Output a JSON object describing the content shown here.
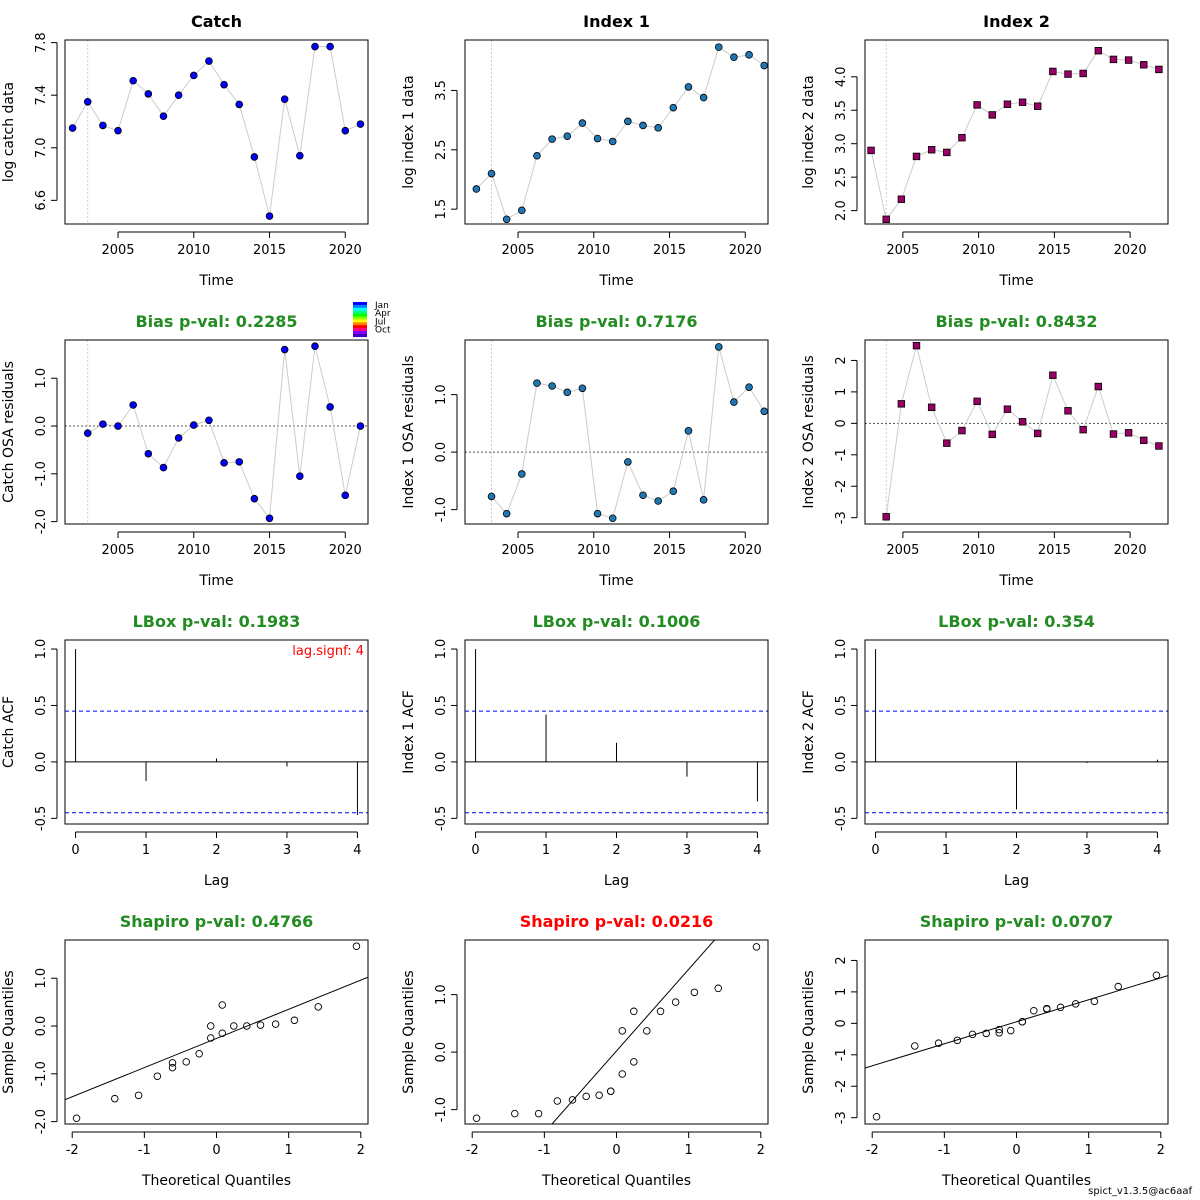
{
  "footer": "spict_v1.3.5@ac6aaf",
  "season_legend": [
    "Jan",
    "Apr",
    "Jul",
    "Oct"
  ],
  "colors": {
    "ok": "#228B22",
    "bad": "#FF0000",
    "catch_pt": "#0000FF",
    "index1_pt": "#1F78B4",
    "index2_pt": "#990066",
    "ci_line": "#0000FF"
  },
  "chart_data": [
    {
      "type": "scatter",
      "title": "Catch",
      "xlabel": "Time",
      "ylabel": "log catch data",
      "xlim": [
        2001.5,
        2021.5
      ],
      "ylim": [
        6.42,
        7.82
      ],
      "xticks": [
        2005,
        2010,
        2015,
        2020
      ],
      "yticks": [
        6.6,
        7.0,
        7.4,
        7.8
      ],
      "ytick_labels": [
        "6.6",
        "7.0",
        "7.4",
        "7.8"
      ],
      "vline": 2003,
      "marker": "circle",
      "color": "#0000FF",
      "x": [
        2002,
        2003,
        2004,
        2005,
        2006,
        2007,
        2008,
        2009,
        2010,
        2011,
        2012,
        2013,
        2014,
        2015,
        2016,
        2017,
        2018,
        2019,
        2020,
        2021
      ],
      "y": [
        7.15,
        7.35,
        7.17,
        7.13,
        7.51,
        7.41,
        7.24,
        7.4,
        7.55,
        7.66,
        7.48,
        7.33,
        6.93,
        6.48,
        7.37,
        6.94,
        7.77,
        7.77,
        7.13,
        7.18
      ]
    },
    {
      "type": "scatter",
      "title": "Index 1",
      "xlabel": "Time",
      "ylabel": "log index 1 data",
      "xlim": [
        2001.5,
        2021.5
      ],
      "ylim": [
        1.25,
        4.35
      ],
      "xticks": [
        2005,
        2010,
        2015,
        2020
      ],
      "yticks": [
        1.5,
        2.5,
        3.5
      ],
      "ytick_labels": [
        "1.5",
        "2.5",
        "3.5"
      ],
      "vline": 2003.25,
      "marker": "circle",
      "color": "#1F78B4",
      "x": [
        2002.25,
        2003.25,
        2004.25,
        2005.25,
        2006.25,
        2007.25,
        2008.25,
        2009.25,
        2010.25,
        2011.25,
        2012.25,
        2013.25,
        2014.25,
        2015.25,
        2016.25,
        2017.25,
        2018.25,
        2019.25,
        2020.25,
        2021.25
      ],
      "y": [
        1.84,
        2.1,
        1.33,
        1.48,
        2.4,
        2.68,
        2.73,
        2.95,
        2.69,
        2.64,
        2.98,
        2.91,
        2.87,
        3.21,
        3.56,
        3.38,
        4.23,
        4.06,
        4.1,
        3.92
      ]
    },
    {
      "type": "scatter",
      "title": "Index 2",
      "xlabel": "Time",
      "ylabel": "log index 2 data",
      "xlim": [
        2002.5,
        2022.5
      ],
      "ylim": [
        1.8,
        4.55
      ],
      "xticks": [
        2005,
        2010,
        2015,
        2020
      ],
      "yticks": [
        2.0,
        2.5,
        3.0,
        3.5,
        4.0
      ],
      "ytick_labels": [
        "2.0",
        "2.5",
        "3.0",
        "3.5",
        "4.0"
      ],
      "vline": 2003.9,
      "marker": "square",
      "color": "#990066",
      "x": [
        2002.9,
        2003.9,
        2004.9,
        2005.9,
        2006.9,
        2007.9,
        2008.9,
        2009.9,
        2010.9,
        2011.9,
        2012.9,
        2013.9,
        2014.9,
        2015.9,
        2016.9,
        2017.9,
        2018.9,
        2019.9,
        2020.9,
        2021.9
      ],
      "y": [
        2.9,
        1.87,
        2.17,
        2.81,
        2.91,
        2.87,
        3.09,
        3.58,
        3.43,
        3.59,
        3.62,
        3.56,
        4.08,
        4.04,
        4.05,
        4.39,
        4.26,
        4.25,
        4.18,
        4.11
      ]
    },
    {
      "type": "scatter",
      "title": "Bias p-val: 0.2285",
      "title_status": "ok",
      "xlabel": "Time",
      "ylabel": "Catch OSA residuals",
      "xlim": [
        2001.5,
        2021.5
      ],
      "ylim": [
        -2.05,
        1.8
      ],
      "xticks": [
        2005,
        2010,
        2015,
        2020
      ],
      "yticks": [
        -2.0,
        -1.0,
        0.0,
        1.0
      ],
      "ytick_labels": [
        "-2.0",
        "-1.0",
        "0.0",
        "1.0"
      ],
      "vline": 2003,
      "hline": 0,
      "marker": "circle",
      "color": "#0000FF",
      "season_legend": true,
      "x": [
        2003,
        2004,
        2005,
        2006,
        2007,
        2008,
        2009,
        2010,
        2011,
        2012,
        2013,
        2014,
        2015,
        2016,
        2017,
        2018,
        2019,
        2020,
        2021
      ],
      "y": [
        -0.15,
        0.04,
        0.0,
        0.44,
        -0.58,
        -0.87,
        -0.25,
        0.02,
        0.12,
        -0.77,
        -0.75,
        -1.52,
        -1.93,
        1.6,
        -1.05,
        1.67,
        0.4,
        -1.45,
        0.0
      ]
    },
    {
      "type": "scatter",
      "title": "Bias p-val: 0.7176",
      "title_status": "ok",
      "xlabel": "Time",
      "ylabel": "Index 1 OSA residuals",
      "xlim": [
        2001.5,
        2021.5
      ],
      "ylim": [
        -1.25,
        1.95
      ],
      "xticks": [
        2005,
        2010,
        2015,
        2020
      ],
      "yticks": [
        -1.0,
        0.0,
        1.0
      ],
      "ytick_labels": [
        "-1.0",
        "0.0",
        "1.0"
      ],
      "vline": 2003.25,
      "hline": 0,
      "marker": "circle",
      "color": "#1F78B4",
      "x": [
        2003.25,
        2004.25,
        2005.25,
        2006.25,
        2007.25,
        2008.25,
        2009.25,
        2010.25,
        2011.25,
        2012.25,
        2013.25,
        2014.25,
        2015.25,
        2016.25,
        2017.25,
        2018.25,
        2019.25,
        2020.25,
        2021.25
      ],
      "y": [
        -0.77,
        -1.07,
        -0.38,
        1.2,
        1.15,
        1.04,
        1.11,
        -1.07,
        -1.15,
        -0.17,
        -0.75,
        -0.85,
        -0.68,
        0.37,
        -0.83,
        1.83,
        0.87,
        1.13,
        0.71
      ]
    },
    {
      "type": "scatter",
      "title": "Bias p-val: 0.8432",
      "title_status": "ok",
      "xlabel": "Time",
      "ylabel": "Index 2 OSA residuals",
      "xlim": [
        2002.5,
        2022.5
      ],
      "ylim": [
        -3.2,
        2.65
      ],
      "xticks": [
        2005,
        2010,
        2015,
        2020
      ],
      "yticks": [
        -3,
        -2,
        -1,
        0,
        1,
        2
      ],
      "ytick_labels": [
        "-3",
        "-2",
        "-1",
        "0",
        "1",
        "2"
      ],
      "vline": 2003.9,
      "hline": 0,
      "marker": "square",
      "color": "#990066",
      "x": [
        2003.9,
        2004.9,
        2005.9,
        2006.9,
        2007.9,
        2008.9,
        2009.9,
        2010.9,
        2011.9,
        2012.9,
        2013.9,
        2014.9,
        2015.9,
        2016.9,
        2017.9,
        2018.9,
        2019.9,
        2020.9,
        2021.9
      ],
      "y": [
        -2.97,
        0.62,
        2.47,
        0.51,
        -0.63,
        -0.23,
        0.7,
        -0.35,
        0.45,
        0.05,
        -0.32,
        1.53,
        0.4,
        -0.2,
        1.17,
        -0.34,
        -0.3,
        -0.54,
        -0.72
      ]
    },
    {
      "type": "bar",
      "title": "LBox p-val: 0.1983",
      "title_status": "ok",
      "xlabel": "Lag",
      "ylabel": "Catch ACF",
      "xlim": [
        -0.15,
        4.15
      ],
      "ylim": [
        -0.55,
        1.08
      ],
      "xticks": [
        0,
        1,
        2,
        3,
        4
      ],
      "yticks": [
        -0.5,
        0.0,
        0.5,
        1.0
      ],
      "ytick_labels": [
        "-0.5",
        "0.0",
        "0.5",
        "1.0"
      ],
      "ci": 0.45,
      "annotation": "lag.signf: 4",
      "lags": [
        0,
        1,
        2,
        3,
        4
      ],
      "values": [
        1.0,
        -0.17,
        0.03,
        -0.04,
        -0.47
      ]
    },
    {
      "type": "bar",
      "title": "LBox p-val: 0.1006",
      "title_status": "ok",
      "xlabel": "Lag",
      "ylabel": "Index 1 ACF",
      "xlim": [
        -0.15,
        4.15
      ],
      "ylim": [
        -0.55,
        1.08
      ],
      "xticks": [
        0,
        1,
        2,
        3,
        4
      ],
      "yticks": [
        -0.5,
        0.0,
        0.5,
        1.0
      ],
      "ytick_labels": [
        "-0.5",
        "0.0",
        "0.5",
        "1.0"
      ],
      "ci": 0.45,
      "lags": [
        0,
        1,
        2,
        3,
        4
      ],
      "values": [
        1.0,
        0.42,
        0.17,
        -0.13,
        -0.35
      ]
    },
    {
      "type": "bar",
      "title": "LBox p-val: 0.354",
      "title_status": "ok",
      "xlabel": "Lag",
      "ylabel": "Index 2 ACF",
      "xlim": [
        -0.15,
        4.15
      ],
      "ylim": [
        -0.55,
        1.08
      ],
      "xticks": [
        0,
        1,
        2,
        3,
        4
      ],
      "yticks": [
        -0.5,
        0.0,
        0.5,
        1.0
      ],
      "ytick_labels": [
        "-0.5",
        "0.0",
        "0.5",
        "1.0"
      ],
      "ci": 0.45,
      "lags": [
        0,
        1,
        2,
        3,
        4
      ],
      "values": [
        1.0,
        0.0,
        -0.42,
        -0.01,
        0.02
      ]
    },
    {
      "type": "scatter",
      "title": "Shapiro p-val: 0.4766",
      "title_status": "ok",
      "xlabel": "Theoretical Quantiles",
      "ylabel": "Sample Quantiles",
      "xlim": [
        -2.1,
        2.1
      ],
      "ylim": [
        -2.05,
        1.8
      ],
      "xticks": [
        -2,
        -1,
        0,
        1,
        2
      ],
      "yticks": [
        -2.0,
        -1.0,
        0.0,
        1.0
      ],
      "ytick_labels": [
        "-2.0",
        "-1.0",
        "0.0",
        "1.0"
      ],
      "marker": "open-circle",
      "qq_line": [
        -0.26,
        0.61
      ],
      "x": [
        -1.94,
        -1.41,
        -1.08,
        -0.82,
        -0.61,
        -0.42,
        -0.24,
        -0.08,
        0.08,
        0.24,
        0.42,
        0.61,
        0.82,
        1.08,
        1.41,
        1.94,
        -0.61,
        -0.08,
        0.08
      ],
      "y": [
        -1.93,
        -1.52,
        -1.45,
        -1.05,
        -0.87,
        -0.75,
        -0.58,
        -0.25,
        -0.15,
        0.0,
        0.0,
        0.02,
        0.04,
        0.12,
        0.4,
        1.67,
        -0.77,
        0.0,
        0.44
      ]
    },
    {
      "type": "scatter",
      "title": "Shapiro p-val: 0.0216",
      "title_status": "bad",
      "xlabel": "Theoretical Quantiles",
      "ylabel": "Sample Quantiles",
      "xlim": [
        -2.1,
        2.1
      ],
      "ylim": [
        -1.25,
        1.95
      ],
      "xticks": [
        -2,
        -1,
        0,
        1,
        2
      ],
      "yticks": [
        -1.0,
        0.0,
        1.0
      ],
      "ytick_labels": [
        "-1.0",
        "0.0",
        "1.0"
      ],
      "marker": "open-circle",
      "qq_line": [
        0.02,
        1.42
      ],
      "x": [
        -1.94,
        -1.41,
        -1.08,
        -0.82,
        -0.61,
        -0.42,
        -0.24,
        -0.08,
        0.08,
        0.24,
        0.42,
        0.61,
        0.82,
        1.08,
        1.41,
        1.94,
        -0.08,
        0.08,
        0.24
      ],
      "y": [
        -1.15,
        -1.07,
        -1.07,
        -0.85,
        -0.83,
        -0.77,
        -0.75,
        -0.68,
        -0.38,
        -0.17,
        0.37,
        0.71,
        0.87,
        1.04,
        1.11,
        1.83,
        -0.68,
        0.37,
        0.71
      ]
    },
    {
      "type": "scatter",
      "title": "Shapiro p-val: 0.0707",
      "title_status": "ok",
      "xlabel": "Theoretical Quantiles",
      "ylabel": "Sample Quantiles",
      "xlim": [
        -2.1,
        2.1
      ],
      "ylim": [
        -3.2,
        2.65
      ],
      "xticks": [
        -2,
        -1,
        0,
        1,
        2
      ],
      "yticks": [
        -3,
        -2,
        -1,
        0,
        1,
        2
      ],
      "ytick_labels": [
        "-3",
        "-2",
        "-1",
        "0",
        "1",
        "2"
      ],
      "marker": "open-circle",
      "qq_line": [
        0.05,
        0.7
      ],
      "x": [
        -1.94,
        -1.41,
        -1.08,
        -0.82,
        -0.61,
        -0.42,
        -0.24,
        -0.08,
        0.08,
        0.24,
        0.42,
        0.61,
        0.82,
        1.08,
        1.41,
        1.94,
        -0.24,
        0.08,
        0.42
      ],
      "y": [
        -2.97,
        -0.72,
        -0.63,
        -0.54,
        -0.35,
        -0.32,
        -0.3,
        -0.23,
        0.05,
        0.4,
        0.45,
        0.51,
        0.62,
        0.7,
        1.17,
        1.53,
        -0.2,
        0.05,
        0.47
      ]
    }
  ]
}
